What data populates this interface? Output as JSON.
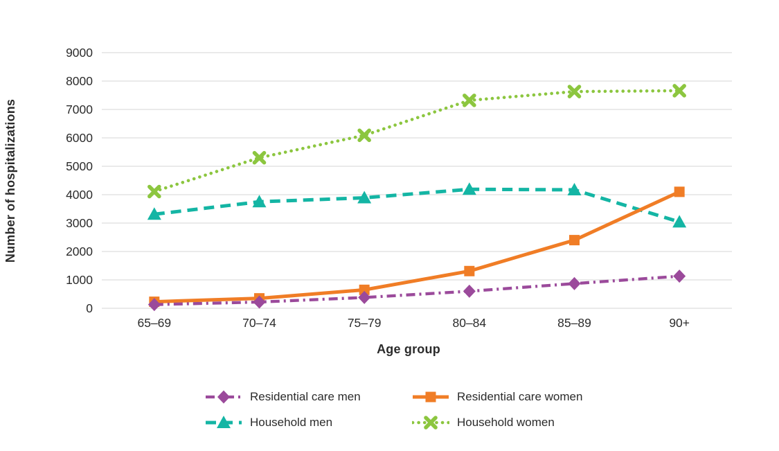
{
  "chart_data": {
    "type": "line",
    "title": "",
    "xlabel": "Age group",
    "ylabel": "Number of hospitalizations",
    "categories": [
      "65–69",
      "70–74",
      "75–79",
      "80–84",
      "85–89",
      "90+"
    ],
    "ylim": [
      0,
      9000
    ],
    "yticks": [
      0,
      1000,
      2000,
      3000,
      4000,
      5000,
      6000,
      7000,
      8000,
      9000
    ],
    "grid": "horizontal",
    "grid_color": "#e3e3e3",
    "text_color": "#2b2b2b",
    "background": "#ffffff",
    "legend_position": "bottom",
    "series": [
      {
        "name": "Residential care men",
        "color": "#9b4a9b",
        "line_style": "dash-dot",
        "marker": "diamond",
        "values": [
          130,
          220,
          380,
          600,
          870,
          1130
        ]
      },
      {
        "name": "Residential care women",
        "color": "#f07d26",
        "line_style": "solid",
        "marker": "square",
        "values": [
          230,
          350,
          650,
          1310,
          2400,
          4100
        ]
      },
      {
        "name": "Household men",
        "color": "#14b5a4",
        "line_style": "dashed",
        "marker": "triangle",
        "values": [
          3310,
          3750,
          3890,
          4190,
          4170,
          3040
        ]
      },
      {
        "name": "Household women",
        "color": "#8cc63f",
        "line_style": "dotted",
        "marker": "x",
        "values": [
          4110,
          5300,
          6090,
          7320,
          7630,
          7660
        ]
      }
    ]
  }
}
